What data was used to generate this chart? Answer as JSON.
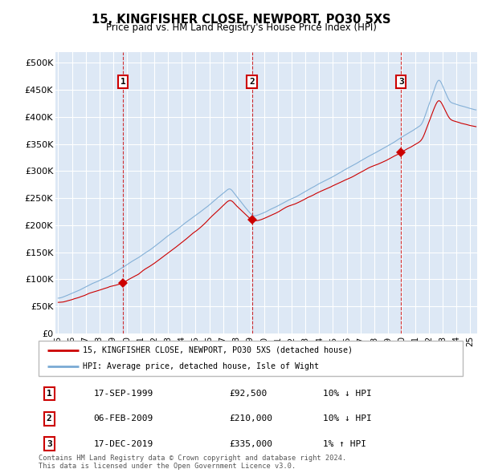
{
  "title": "15, KINGFISHER CLOSE, NEWPORT, PO30 5XS",
  "subtitle": "Price paid vs. HM Land Registry's House Price Index (HPI)",
  "ylabel_ticks": [
    "£0",
    "£50K",
    "£100K",
    "£150K",
    "£200K",
    "£250K",
    "£300K",
    "£350K",
    "£400K",
    "£450K",
    "£500K"
  ],
  "ytick_values": [
    0,
    50000,
    100000,
    150000,
    200000,
    250000,
    300000,
    350000,
    400000,
    450000,
    500000
  ],
  "ylim": [
    0,
    520000
  ],
  "xlim_start": 1994.8,
  "xlim_end": 2025.5,
  "background_color": "#dde8f5",
  "grid_color": "#ffffff",
  "sale_color": "#cc0000",
  "hpi_color": "#7aaad4",
  "sale_label": "15, KINGFISHER CLOSE, NEWPORT, PO30 5XS (detached house)",
  "hpi_label": "HPI: Average price, detached house, Isle of Wight",
  "transactions": [
    {
      "num": 1,
      "date": "17-SEP-1999",
      "price": 92500,
      "year": 1999.72,
      "pct": "10%",
      "dir": "↓"
    },
    {
      "num": 2,
      "date": "06-FEB-2009",
      "price": 210000,
      "year": 2009.1,
      "pct": "10%",
      "dir": "↓"
    },
    {
      "num": 3,
      "date": "17-DEC-2019",
      "price": 335000,
      "year": 2019.96,
      "pct": "1%",
      "dir": "↑"
    }
  ],
  "footer": "Contains HM Land Registry data © Crown copyright and database right 2024.\nThis data is licensed under the Open Government Licence v3.0.",
  "xtick_years": [
    1995,
    1996,
    1997,
    1998,
    1999,
    2000,
    2001,
    2002,
    2003,
    2004,
    2005,
    2006,
    2007,
    2008,
    2009,
    2010,
    2011,
    2012,
    2013,
    2014,
    2015,
    2016,
    2017,
    2018,
    2019,
    2020,
    2021,
    2022,
    2023,
    2024,
    2025
  ]
}
